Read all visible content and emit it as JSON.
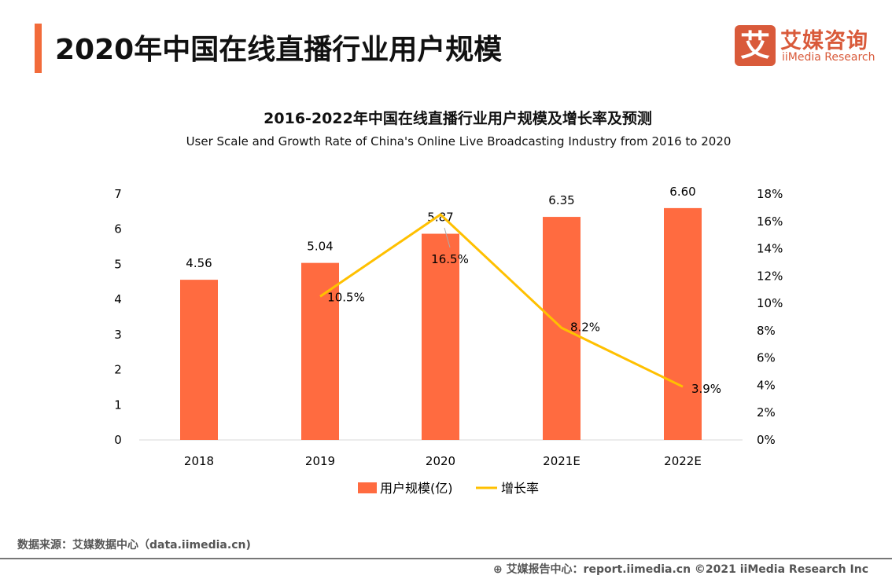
{
  "header": {
    "title": "2020年中国在线直播行业用户规模"
  },
  "logo": {
    "mark": "艾",
    "cn": "艾媒咨询",
    "en": "iiMedia Research"
  },
  "chart_data": {
    "type": "bar+line",
    "title": "2016-2022年中国在线直播行业用户规模及增长率及预测",
    "subtitle": "User Scale and Growth Rate of China's Online Live Broadcasting Industry from 2016 to 2020",
    "categories": [
      "2018",
      "2019",
      "2020",
      "2021E",
      "2022E"
    ],
    "series": [
      {
        "name": "用户规模(亿)",
        "type": "bar",
        "axis": "left",
        "color": "#FF6B40",
        "values": [
          4.56,
          5.04,
          5.87,
          6.35,
          6.6
        ],
        "labels": [
          "4.56",
          "5.04",
          "5.87",
          "6.35",
          "6.60"
        ]
      },
      {
        "name": "增长率",
        "type": "line",
        "axis": "right",
        "color": "#FFC000",
        "values": [
          null,
          10.5,
          16.5,
          8.2,
          3.9
        ],
        "labels": [
          "",
          "10.5%",
          "16.5%",
          "8.2%",
          "3.9%"
        ]
      }
    ],
    "left_axis": {
      "ylim": [
        0,
        7
      ],
      "ticks": [
        "0",
        "1",
        "2",
        "3",
        "4",
        "5",
        "6",
        "7"
      ]
    },
    "right_axis": {
      "ylim": [
        0,
        18
      ],
      "ticks": [
        "0%",
        "2%",
        "4%",
        "6%",
        "8%",
        "10%",
        "12%",
        "14%",
        "16%",
        "18%"
      ]
    },
    "grid": false,
    "legend": "bottom"
  },
  "footer": {
    "source": "数据来源：艾媒数据中心（data.iimedia.cn)",
    "report": "艾媒报告中心：report.iimedia.cn   ©2021  iiMedia Research  Inc"
  }
}
